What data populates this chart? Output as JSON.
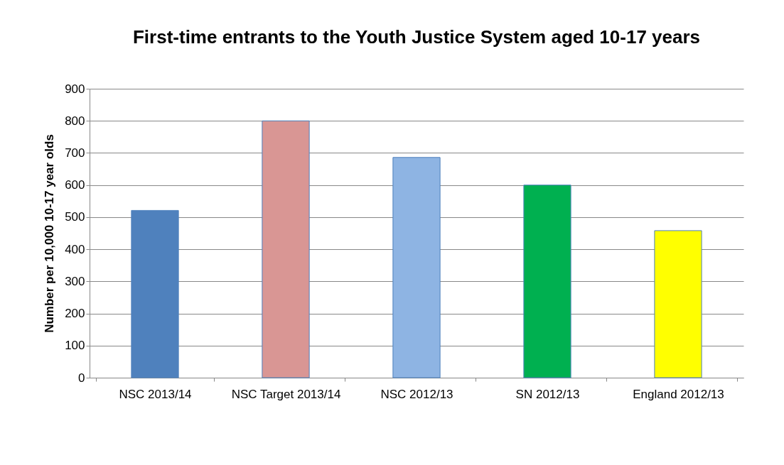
{
  "chart_data": {
    "type": "bar",
    "title": "First-time entrants to the Youth Justice System aged 10-17 years",
    "ylabel": "Number per 10,000 10-17 year olds",
    "categories": [
      "NSC 2013/14",
      "NSC Target 2013/14",
      "NSC 2012/13",
      "SN 2012/13",
      "England 2012/13"
    ],
    "values": [
      521,
      800,
      686,
      600,
      458
    ],
    "colors": [
      "#4f81bd",
      "#d99694",
      "#8eb4e3",
      "#00b050",
      "#ffff00"
    ],
    "ylim": [
      0,
      900
    ],
    "yticks": [
      0,
      100,
      200,
      300,
      400,
      500,
      600,
      700,
      800,
      900
    ],
    "grid": "y"
  }
}
